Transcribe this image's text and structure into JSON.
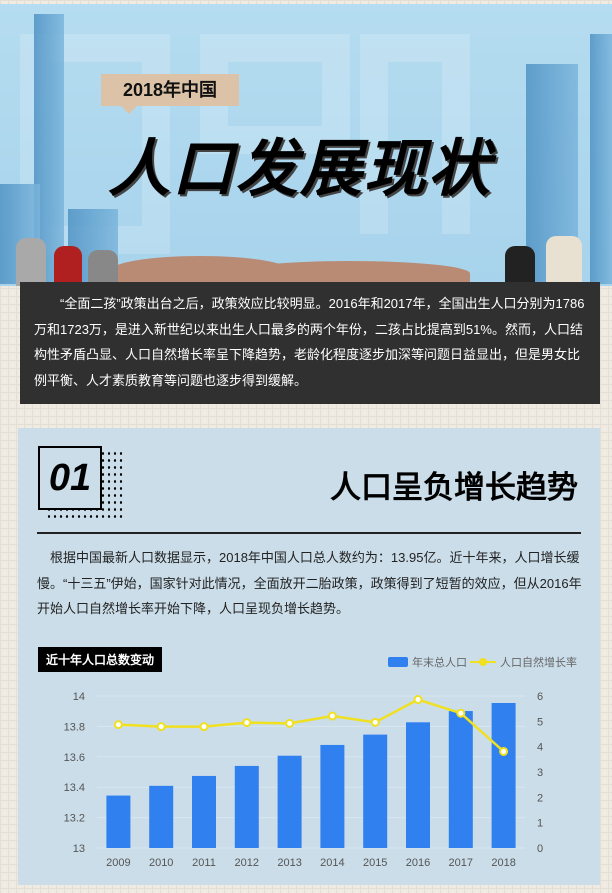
{
  "header": {
    "tag": "2018年中国",
    "title": "人口发展现状"
  },
  "intro": "“全面二孩”政策出台之后，政策效应比较明显。2016年和2017年，全国出生人口分别为1786万和1723万，是进入新世纪以来出生人口最多的两个年份，二孩占比提高到51%。然而，人口结构性矛盾凸显、人口自然增长率呈下降趋势，老龄化程度逐步加深等问题日益显出，但是男女比例平衡、人才素质教育等问题也逐步得到缓解。",
  "section": {
    "number": "01",
    "title": "人口呈负增长趋势",
    "body": "根据中国最新人口数据显示，2018年中国人口总人数约为：13.95亿。近十年来，人口增长缓慢。“十三五”伊始，国家针对此情况，全面放开二胎政策，政策得到了短暂的效应，但从2016年开始人口自然增长率开始下降，人口呈现负增长趋势。"
  },
  "chart_data": {
    "type": "bar+line",
    "title": "近十年人口总数变动",
    "categories": [
      "2009",
      "2010",
      "2011",
      "2012",
      "2013",
      "2014",
      "2015",
      "2016",
      "2017",
      "2018"
    ],
    "series": [
      {
        "name": "年末总人口",
        "type": "bar",
        "axis": "left",
        "color": "#3180f0",
        "values": [
          13.345,
          13.409,
          13.474,
          13.54,
          13.607,
          13.678,
          13.746,
          13.827,
          13.901,
          13.954
        ]
      },
      {
        "name": "人口自然增长率",
        "type": "line",
        "axis": "right",
        "color": "#f0e020",
        "values": [
          4.87,
          4.79,
          4.79,
          4.95,
          4.92,
          5.21,
          4.96,
          5.86,
          5.32,
          3.81
        ]
      }
    ],
    "ylim_left": [
      13,
      14
    ],
    "yticks_left": [
      "13",
      "13.2",
      "13.4",
      "13.6",
      "13.8",
      "14"
    ],
    "ylim_right": [
      0,
      6
    ],
    "yticks_right": [
      "0",
      "1",
      "2",
      "3",
      "4",
      "5",
      "6"
    ],
    "legend": "top-right",
    "grid": true
  }
}
